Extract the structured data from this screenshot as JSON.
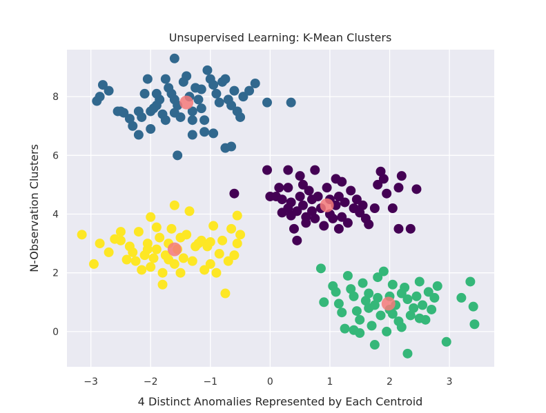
{
  "chart_data": {
    "type": "scatter",
    "title": "Unsupervised Learning: K-Mean Clusters",
    "xlabel": "4 Distinct Anomalies Represented by Each Centroid",
    "ylabel": "N-Observation Clusters",
    "xlim": [
      -3.4,
      3.75
    ],
    "ylim": [
      -1.2,
      9.6
    ],
    "x_ticks": [
      -3,
      -2,
      -1,
      0,
      1,
      2,
      3
    ],
    "x_tick_labels": [
      "−3",
      "−2",
      "−1",
      "0",
      "1",
      "2",
      "3"
    ],
    "y_ticks": [
      0,
      2,
      4,
      6,
      8
    ],
    "y_tick_labels": [
      "0",
      "2",
      "4",
      "6",
      "8"
    ],
    "grid": true,
    "background": "#eaeaf2",
    "grid_color": "#ffffff",
    "centroid_color": "#f47a7a",
    "centroids": [
      {
        "x": -1.4,
        "y": 7.8
      },
      {
        "x": 0.95,
        "y": 4.3
      },
      {
        "x": -1.6,
        "y": 2.8
      },
      {
        "x": 1.98,
        "y": 0.95
      }
    ],
    "series": [
      {
        "color": "#31688e",
        "points": [
          [
            -1.6,
            9.3
          ],
          [
            -2.8,
            8.4
          ],
          [
            -2.85,
            8.0
          ],
          [
            -2.9,
            7.85
          ],
          [
            -2.7,
            8.2
          ],
          [
            -2.5,
            7.5
          ],
          [
            -2.35,
            7.25
          ],
          [
            -2.45,
            7.45
          ],
          [
            -2.2,
            7.5
          ],
          [
            -2.15,
            7.3
          ],
          [
            -2.3,
            7.0
          ],
          [
            -2.2,
            6.7
          ],
          [
            -2.0,
            6.9
          ],
          [
            -2.0,
            7.5
          ],
          [
            -1.95,
            7.6
          ],
          [
            -1.85,
            7.9
          ],
          [
            -1.9,
            7.7
          ],
          [
            -1.8,
            7.4
          ],
          [
            -1.75,
            7.2
          ],
          [
            -1.7,
            8.3
          ],
          [
            -1.65,
            8.1
          ],
          [
            -1.6,
            7.9
          ],
          [
            -1.55,
            7.7
          ],
          [
            -1.5,
            7.3
          ],
          [
            -1.45,
            8.5
          ],
          [
            -1.4,
            8.7
          ],
          [
            -1.35,
            8.0
          ],
          [
            -1.3,
            7.5
          ],
          [
            -1.25,
            8.3
          ],
          [
            -1.2,
            7.9
          ],
          [
            -1.15,
            7.6
          ],
          [
            -1.1,
            7.2
          ],
          [
            -1.05,
            8.9
          ],
          [
            -1.0,
            8.6
          ],
          [
            -0.95,
            8.4
          ],
          [
            -0.9,
            8.1
          ],
          [
            -0.85,
            7.8
          ],
          [
            -0.8,
            8.5
          ],
          [
            -0.75,
            8.6
          ],
          [
            -0.7,
            7.9
          ],
          [
            -0.65,
            7.7
          ],
          [
            -0.6,
            8.2
          ],
          [
            -0.55,
            7.5
          ],
          [
            -0.5,
            7.3
          ],
          [
            -0.45,
            8.0
          ],
          [
            -0.35,
            8.2
          ],
          [
            -0.25,
            8.45
          ],
          [
            -0.05,
            7.8
          ],
          [
            0.35,
            7.8
          ],
          [
            -1.55,
            6.0
          ],
          [
            -1.3,
            6.7
          ],
          [
            -1.1,
            6.8
          ],
          [
            -0.95,
            6.75
          ],
          [
            -0.75,
            6.25
          ],
          [
            -0.65,
            6.3
          ],
          [
            -1.75,
            8.6
          ],
          [
            -1.9,
            8.1
          ],
          [
            -2.05,
            8.6
          ],
          [
            -2.1,
            8.1
          ],
          [
            -1.3,
            7.2
          ],
          [
            -1.6,
            7.45
          ],
          [
            -2.55,
            7.5
          ],
          [
            -1.15,
            8.25
          ]
        ]
      },
      {
        "color": "#440154",
        "points": [
          [
            -0.6,
            4.7
          ],
          [
            -0.05,
            5.5
          ],
          [
            0.0,
            4.6
          ],
          [
            0.1,
            4.6
          ],
          [
            0.15,
            4.9
          ],
          [
            0.2,
            4.5
          ],
          [
            0.2,
            4.05
          ],
          [
            0.3,
            5.5
          ],
          [
            0.3,
            4.9
          ],
          [
            0.35,
            4.4
          ],
          [
            0.35,
            3.95
          ],
          [
            0.4,
            3.5
          ],
          [
            0.45,
            3.1
          ],
          [
            0.45,
            4.1
          ],
          [
            0.5,
            5.3
          ],
          [
            0.5,
            4.6
          ],
          [
            0.55,
            4.3
          ],
          [
            0.6,
            3.9
          ],
          [
            0.6,
            3.7
          ],
          [
            0.65,
            4.8
          ],
          [
            0.7,
            4.5
          ],
          [
            0.7,
            4.1
          ],
          [
            0.75,
            5.5
          ],
          [
            0.75,
            3.85
          ],
          [
            0.8,
            4.6
          ],
          [
            0.85,
            4.2
          ],
          [
            0.9,
            3.6
          ],
          [
            0.95,
            4.9
          ],
          [
            1.0,
            4.5
          ],
          [
            1.0,
            4.0
          ],
          [
            1.05,
            3.85
          ],
          [
            1.1,
            5.2
          ],
          [
            1.1,
            4.3
          ],
          [
            1.15,
            4.6
          ],
          [
            1.2,
            5.1
          ],
          [
            1.2,
            3.9
          ],
          [
            1.25,
            4.4
          ],
          [
            1.3,
            3.7
          ],
          [
            1.35,
            4.8
          ],
          [
            1.4,
            4.2
          ],
          [
            1.45,
            4.5
          ],
          [
            1.5,
            4.05
          ],
          [
            1.55,
            4.3
          ],
          [
            1.6,
            3.85
          ],
          [
            1.65,
            3.65
          ],
          [
            1.75,
            4.2
          ],
          [
            1.8,
            5.0
          ],
          [
            1.85,
            5.45
          ],
          [
            1.9,
            5.2
          ],
          [
            1.95,
            4.7
          ],
          [
            2.05,
            4.2
          ],
          [
            2.15,
            4.9
          ],
          [
            2.15,
            3.5
          ],
          [
            2.2,
            5.3
          ],
          [
            2.35,
            3.5
          ],
          [
            2.45,
            4.85
          ],
          [
            0.55,
            5.0
          ],
          [
            0.3,
            4.2
          ],
          [
            1.15,
            3.5
          ]
        ]
      },
      {
        "color": "#fde725",
        "points": [
          [
            -3.15,
            3.3
          ],
          [
            -2.95,
            2.3
          ],
          [
            -2.85,
            3.0
          ],
          [
            -2.7,
            2.7
          ],
          [
            -2.6,
            3.15
          ],
          [
            -2.5,
            3.4
          ],
          [
            -2.4,
            2.45
          ],
          [
            -2.35,
            2.9
          ],
          [
            -2.3,
            2.7
          ],
          [
            -2.25,
            2.4
          ],
          [
            -2.2,
            3.4
          ],
          [
            -2.15,
            2.1
          ],
          [
            -2.1,
            2.6
          ],
          [
            -2.05,
            3.0
          ],
          [
            -2.0,
            2.2
          ],
          [
            -2.0,
            3.9
          ],
          [
            -1.95,
            2.5
          ],
          [
            -1.9,
            2.8
          ],
          [
            -1.85,
            3.2
          ],
          [
            -1.8,
            2.0
          ],
          [
            -1.8,
            1.6
          ],
          [
            -1.75,
            2.6
          ],
          [
            -1.7,
            3.0
          ],
          [
            -1.65,
            3.5
          ],
          [
            -1.6,
            2.3
          ],
          [
            -1.6,
            4.3
          ],
          [
            -1.55,
            2.8
          ],
          [
            -1.5,
            3.2
          ],
          [
            -1.5,
            2.0
          ],
          [
            -1.45,
            2.5
          ],
          [
            -1.4,
            3.3
          ],
          [
            -1.35,
            4.1
          ],
          [
            -1.3,
            2.4
          ],
          [
            -1.25,
            2.9
          ],
          [
            -1.2,
            3.0
          ],
          [
            -1.15,
            3.1
          ],
          [
            -1.1,
            2.1
          ],
          [
            -1.05,
            2.9
          ],
          [
            -1.0,
            3.05
          ],
          [
            -1.0,
            2.3
          ],
          [
            -0.95,
            3.6
          ],
          [
            -0.9,
            2.0
          ],
          [
            -0.85,
            2.65
          ],
          [
            -0.8,
            3.1
          ],
          [
            -0.75,
            1.3
          ],
          [
            -0.7,
            2.4
          ],
          [
            -0.65,
            3.5
          ],
          [
            -0.6,
            2.6
          ],
          [
            -0.55,
            3.0
          ],
          [
            -0.5,
            3.3
          ],
          [
            -0.55,
            3.95
          ],
          [
            -2.05,
            2.8
          ],
          [
            -1.7,
            2.45
          ],
          [
            -2.5,
            3.1
          ],
          [
            -1.9,
            3.55
          ]
        ]
      },
      {
        "color": "#35b779",
        "points": [
          [
            0.85,
            2.15
          ],
          [
            0.9,
            1.0
          ],
          [
            1.05,
            1.55
          ],
          [
            1.1,
            1.35
          ],
          [
            1.15,
            0.95
          ],
          [
            1.2,
            0.65
          ],
          [
            1.25,
            0.1
          ],
          [
            1.3,
            1.9
          ],
          [
            1.35,
            1.45
          ],
          [
            1.4,
            1.2
          ],
          [
            1.45,
            0.7
          ],
          [
            1.5,
            0.4
          ],
          [
            1.5,
            -0.05
          ],
          [
            1.55,
            1.65
          ],
          [
            1.6,
            1.05
          ],
          [
            1.65,
            0.8
          ],
          [
            1.7,
            0.2
          ],
          [
            1.75,
            -0.45
          ],
          [
            1.8,
            1.85
          ],
          [
            1.8,
            1.15
          ],
          [
            1.85,
            0.55
          ],
          [
            1.9,
            2.05
          ],
          [
            1.95,
            0.0
          ],
          [
            2.0,
            1.2
          ],
          [
            2.0,
            0.75
          ],
          [
            2.05,
            1.6
          ],
          [
            2.1,
            0.9
          ],
          [
            2.15,
            0.35
          ],
          [
            2.2,
            1.3
          ],
          [
            2.25,
            1.5
          ],
          [
            2.3,
            1.1
          ],
          [
            2.35,
            0.55
          ],
          [
            2.4,
            0.8
          ],
          [
            2.45,
            1.2
          ],
          [
            2.5,
            1.7
          ],
          [
            2.55,
            0.9
          ],
          [
            2.6,
            0.4
          ],
          [
            2.65,
            1.35
          ],
          [
            2.7,
            0.75
          ],
          [
            2.75,
            1.15
          ],
          [
            2.8,
            1.55
          ],
          [
            2.3,
            -0.75
          ],
          [
            2.95,
            -0.35
          ],
          [
            3.2,
            1.15
          ],
          [
            3.35,
            1.7
          ],
          [
            3.4,
            0.85
          ],
          [
            3.42,
            0.25
          ],
          [
            2.05,
            0.6
          ],
          [
            1.65,
            1.3
          ],
          [
            1.4,
            0.05
          ],
          [
            2.2,
            0.15
          ],
          [
            1.75,
            0.9
          ],
          [
            2.5,
            0.45
          ]
        ]
      }
    ]
  }
}
